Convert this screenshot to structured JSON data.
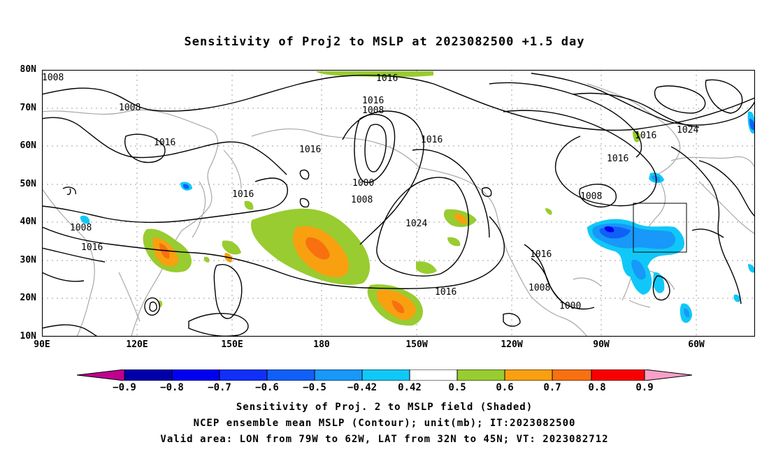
{
  "title": "Sensitivity of Proj2 to MSLP at 2023082500 +1.5 day",
  "lat_labels": [
    "80N",
    "70N",
    "60N",
    "50N",
    "40N",
    "30N",
    "20N",
    "10N"
  ],
  "lon_labels": [
    "90E",
    "120E",
    "150E",
    "180",
    "150W",
    "120W",
    "90W",
    "60W"
  ],
  "contour_labels": [
    "1008",
    "1008",
    "1016",
    "1016",
    "1016",
    "1016",
    "1016",
    "1008",
    "1000",
    "1008",
    "1016",
    "1024",
    "1016",
    "1008",
    "1016",
    "1016",
    "1008",
    "1000",
    "1016",
    "1024",
    "1016",
    "1008"
  ],
  "colorbar": {
    "colors": [
      "#c00090",
      "#0000a8",
      "#0000f0",
      "#1030f8",
      "#1060f8",
      "#1898f8",
      "#10c8f8",
      "#ffffff",
      "#98cc30",
      "#f8a010",
      "#f87010",
      "#f83010",
      "#f80000",
      "#f8a0c8"
    ],
    "labels": [
      "−0.9",
      "−0.8",
      "−0.7",
      "−0.6",
      "−0.5",
      "−0.42",
      "0.42",
      "0.5",
      "0.6",
      "0.7",
      "0.8",
      "0.9"
    ]
  },
  "footer": {
    "line1": "Sensitivity of Proj. 2 to MSLP field (Shaded)",
    "line2": "NCEP ensemble mean MSLP (Contour); unit(mb); IT:2023082500",
    "line3": "Valid area: LON from 79W to 62W, LAT from 32N to 45N; VT: 2023082712"
  }
}
